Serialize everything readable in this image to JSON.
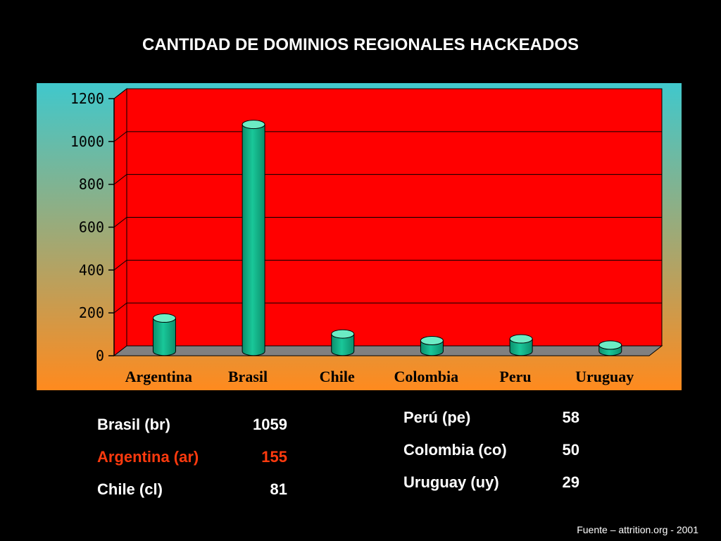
{
  "chart_data": {
    "type": "bar",
    "title": "CANTIDAD DE DOMINIOS REGIONALES HACKEADOS",
    "categories": [
      "Argentina",
      "Brasil",
      "Chile",
      "Colombia",
      "Peru",
      "Uruguay"
    ],
    "values": [
      155,
      1059,
      81,
      50,
      58,
      29
    ],
    "ylim": [
      0,
      1200
    ],
    "yticks": [
      "0",
      "200",
      "400",
      "600",
      "800",
      "1000",
      "1200"
    ],
    "xlabel": "",
    "ylabel": "",
    "grid": true,
    "legend": "none",
    "colors": {
      "plot_back": "#ff0000",
      "floor": "#808080",
      "bar": "#19c799",
      "bar_dark": "#0c8f6c",
      "bar_light": "#6cecc4",
      "gradient_top": "#40c8cc",
      "gradient_bottom": "#ff8a1e"
    }
  },
  "stats_left": [
    {
      "name": "Brasil (br)",
      "value": "1059",
      "color": "#ffffff"
    },
    {
      "name": "Argentina (ar)",
      "value": "155",
      "color": "#ff3a0e"
    },
    {
      "name": "Chile (cl)",
      "value": "81",
      "color": "#ffffff"
    }
  ],
  "stats_right": [
    {
      "name": "Perú (pe)",
      "value": "58",
      "color": "#ffffff"
    },
    {
      "name": "Colombia (co)",
      "value": "50",
      "color": "#ffffff"
    },
    {
      "name": "Uruguay (uy)",
      "value": "29",
      "color": "#ffffff"
    }
  ],
  "footer": "Fuente – attrition.org - 2001"
}
